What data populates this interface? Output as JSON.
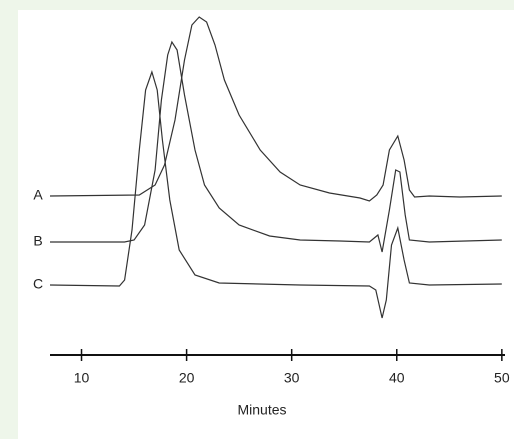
{
  "chart_data": {
    "type": "line",
    "xlabel": "Minutes",
    "xlim": [
      7,
      50.3
    ],
    "xticks": [
      10,
      20,
      30,
      40,
      50
    ],
    "ylim": [
      0,
      330
    ],
    "series": [
      {
        "name": "A",
        "color": "#333333",
        "x": [
          7.0,
          15.5,
          17,
          17.9,
          18.9,
          19.8,
          20.5,
          21.2,
          21.9,
          22.7,
          23.6,
          25,
          27,
          28.9,
          30.8,
          33.6,
          36.5,
          37.4,
          38.1,
          38.7,
          39.3,
          40.1,
          40.7,
          41.2,
          41.7,
          43.1,
          46,
          50
        ],
        "values": [
          134,
          135,
          145,
          165,
          210,
          270,
          305,
          313,
          308,
          285,
          250,
          215,
          180,
          158,
          145,
          137,
          132,
          129,
          135,
          145,
          180,
          194,
          170,
          140,
          133,
          134,
          133,
          134
        ]
      },
      {
        "name": "B",
        "color": "#333333",
        "x": [
          7,
          14.1,
          15,
          16,
          17,
          17.6,
          18.2,
          18.6,
          19.1,
          19.8,
          20.8,
          21.7,
          23.1,
          25,
          27.9,
          30.8,
          34.6,
          37.4,
          38.2,
          38.6,
          39.3,
          39.9,
          40.3,
          40.8,
          41.2,
          43.1,
          50
        ],
        "values": [
          88,
          88,
          90,
          105,
          160,
          230,
          275,
          288,
          280,
          235,
          180,
          145,
          122,
          105,
          94,
          90,
          89,
          88,
          95,
          78,
          120,
          160,
          158,
          115,
          90,
          88,
          90
        ]
      },
      {
        "name": "C",
        "color": "#333333",
        "x": [
          7,
          13.6,
          14.1,
          14.8,
          15.5,
          16.1,
          16.7,
          17.2,
          17.7,
          18.4,
          19.3,
          20.8,
          23.1,
          30.8,
          37.4,
          38,
          38.6,
          39,
          39.5,
          40.1,
          40.7,
          41.2,
          43.1,
          50
        ],
        "values": [
          45,
          44,
          50,
          100,
          180,
          240,
          258,
          240,
          190,
          130,
          80,
          55,
          47,
          45,
          44,
          40,
          12,
          30,
          85,
          102,
          70,
          47,
          45,
          46
        ]
      }
    ]
  }
}
